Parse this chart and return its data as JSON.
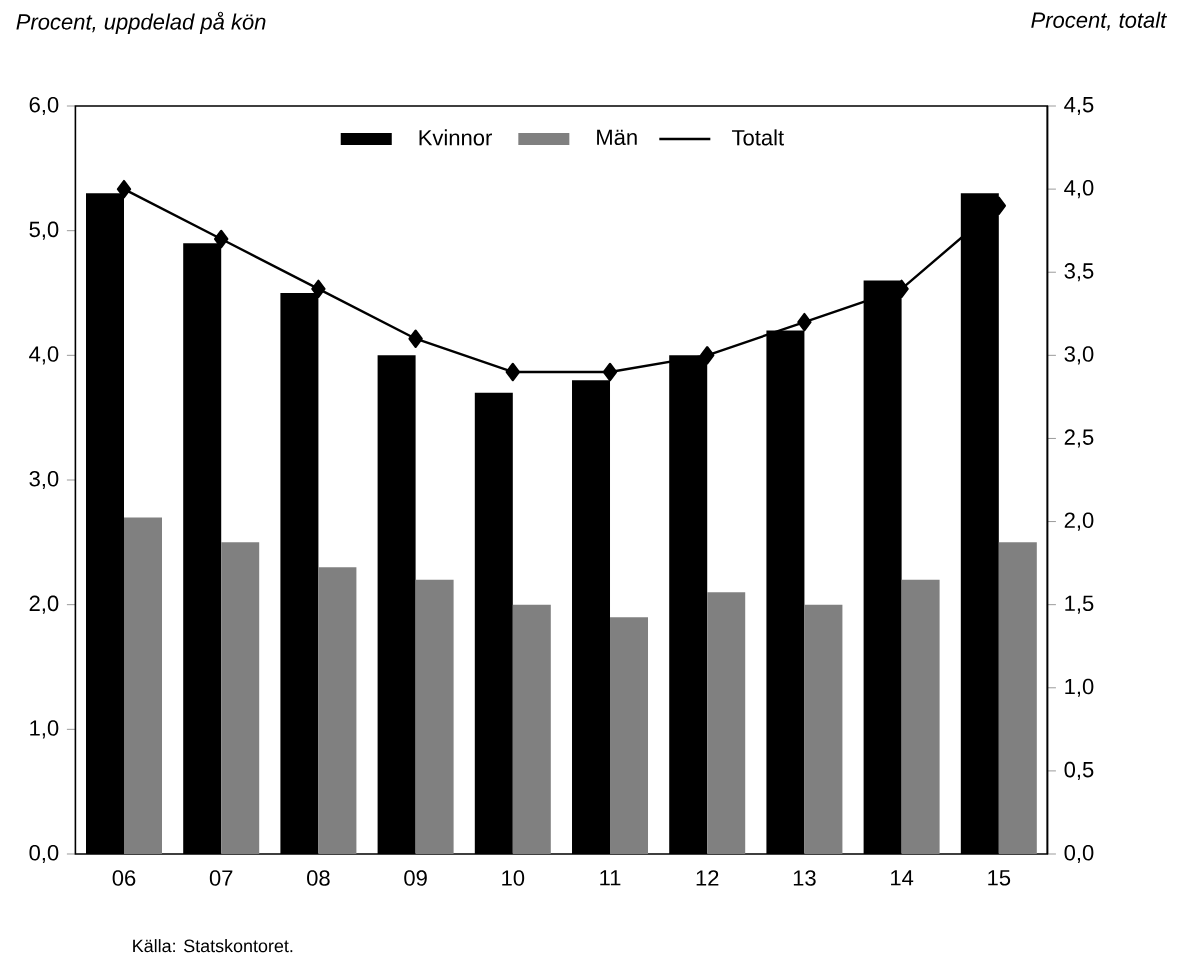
{
  "chart_data": {
    "type": "bar",
    "title": "Procent, uppdelad på kön",
    "y2label": "Procent, totalt",
    "annotations": [
      "Källa: Statskontoret."
    ],
    "categories": [
      "06",
      "07",
      "08",
      "09",
      "10",
      "11",
      "12",
      "13",
      "14",
      "15"
    ],
    "series": [
      {
        "name": "Kvinnor",
        "color": "#000000",
        "values": [
          5.3,
          4.9,
          4.5,
          4.0,
          3.7,
          3.8,
          4.0,
          4.2,
          4.6,
          5.3
        ]
      },
      {
        "name": "Män",
        "color": "#808080",
        "values": [
          2.7,
          2.5,
          2.3,
          2.2,
          2.0,
          1.9,
          2.1,
          2.0,
          2.2,
          2.5
        ]
      },
      {
        "name": "Totalt",
        "color": "#000000",
        "type": "line",
        "axis": "y2",
        "values": [
          4.0,
          3.7,
          3.4,
          3.1,
          2.9,
          2.9,
          3.0,
          3.2,
          3.4,
          3.9
        ]
      }
    ],
    "ylim": [
      0,
      6
    ],
    "yticks": [
      {
        "value": 0,
        "label": "0,0"
      },
      {
        "value": 1,
        "label": "1,0"
      },
      {
        "value": 2,
        "label": "2,0"
      },
      {
        "value": 3,
        "label": "3,0"
      },
      {
        "value": 4,
        "label": "4,0"
      },
      {
        "value": 5,
        "label": "5,0"
      },
      {
        "value": 6,
        "label": "6,0"
      }
    ],
    "y2lim": [
      0,
      4.5
    ],
    "y2ticks": [
      {
        "value": 0,
        "label": "0,0"
      },
      {
        "value": 0.5,
        "label": "0,5"
      },
      {
        "value": 1,
        "label": "1,0"
      },
      {
        "value": 1.5,
        "label": "1,5"
      },
      {
        "value": 2,
        "label": "2,0"
      },
      {
        "value": 2.5,
        "label": "2,5"
      },
      {
        "value": 3,
        "label": "3,0"
      },
      {
        "value": 3.5,
        "label": "3,5"
      },
      {
        "value": 4,
        "label": "4,0"
      },
      {
        "value": 4.5,
        "label": "4,5"
      }
    ],
    "legend": "top",
    "marker": "diamond",
    "line_style": "solid"
  }
}
